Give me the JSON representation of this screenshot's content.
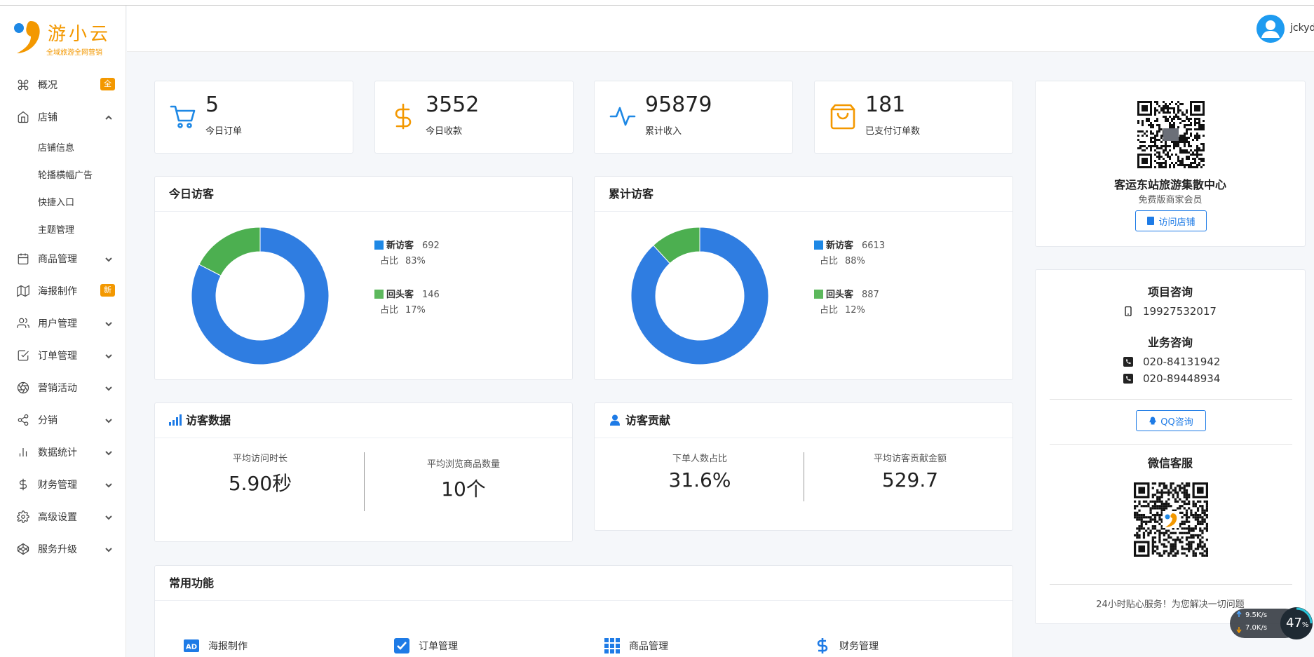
{
  "brand": {
    "name": "游小云",
    "tagline": "全域旅游全网营销"
  },
  "user": {
    "name": "jckyd"
  },
  "sidebar": {
    "items": [
      {
        "label": "概况",
        "icon": "command-icon",
        "badge": "全"
      },
      {
        "label": "店铺",
        "icon": "home-icon",
        "expanded": true,
        "children": [
          "店铺信息",
          "轮播横幅广告",
          "快捷入口",
          "主题管理"
        ]
      },
      {
        "label": "商品管理",
        "icon": "calendar-icon"
      },
      {
        "label": "海报制作",
        "icon": "map-icon",
        "badge": "新"
      },
      {
        "label": "用户管理",
        "icon": "users-icon"
      },
      {
        "label": "订单管理",
        "icon": "check-square-icon"
      },
      {
        "label": "营销活动",
        "icon": "aperture-icon"
      },
      {
        "label": "分销",
        "icon": "share-icon"
      },
      {
        "label": "数据统计",
        "icon": "bar-chart-icon"
      },
      {
        "label": "财务管理",
        "icon": "dollar-icon"
      },
      {
        "label": "高级设置",
        "icon": "settings-icon"
      },
      {
        "label": "服务升级",
        "icon": "codepen-icon"
      }
    ]
  },
  "stats": [
    {
      "value": "5",
      "label": "今日订单",
      "icon": "cart-icon",
      "color": "#1e88e5"
    },
    {
      "value": "3552",
      "label": "今日收款",
      "icon": "dollar-icon",
      "color": "#f39800"
    },
    {
      "value": "95879",
      "label": "累计收入",
      "icon": "activity-icon",
      "color": "#1e88e5"
    },
    {
      "value": "181",
      "label": "已支付订单数",
      "icon": "shopping-bag-icon",
      "color": "#f39800"
    }
  ],
  "today_visitors": {
    "title": "今日访客",
    "legend": [
      {
        "name": "新访客",
        "value": "692",
        "ratio_label": "占比",
        "ratio": "83%",
        "color": "#1e88e5"
      },
      {
        "name": "回头客",
        "value": "146",
        "ratio_label": "占比",
        "ratio": "17%",
        "color": "#5cb85c"
      }
    ]
  },
  "total_visitors": {
    "title": "累计访客",
    "legend": [
      {
        "name": "新访客",
        "value": "6613",
        "ratio_label": "占比",
        "ratio": "88%",
        "color": "#1e88e5"
      },
      {
        "name": "回头客",
        "value": "887",
        "ratio_label": "占比",
        "ratio": "12%",
        "color": "#5cb85c"
      }
    ]
  },
  "chart_data": [
    {
      "type": "pie",
      "title": "今日访客",
      "categories": [
        "新访客",
        "回头客"
      ],
      "values": [
        692,
        146
      ],
      "colors": [
        "#2f7de1",
        "#4caf50"
      ]
    },
    {
      "type": "pie",
      "title": "累计访客",
      "categories": [
        "新访客",
        "回头客"
      ],
      "values": [
        6613,
        887
      ],
      "colors": [
        "#2f7de1",
        "#4caf50"
      ]
    }
  ],
  "visitor_data": {
    "title": "访客数据",
    "metrics": [
      {
        "label": "平均访问时长",
        "value": "5.90秒"
      },
      {
        "label": "平均浏览商品数量",
        "value": "10个"
      }
    ]
  },
  "visitor_contribution": {
    "title": "访客贡献",
    "metrics": [
      {
        "label": "下单人数占比",
        "value": "31.6%"
      },
      {
        "label": "平均访客贡献金额",
        "value": "529.7"
      }
    ]
  },
  "functions": {
    "title": "常用功能",
    "items": [
      {
        "label": "海报制作",
        "icon": "ad-icon"
      },
      {
        "label": "订单管理",
        "icon": "checkbox-icon"
      },
      {
        "label": "商品管理",
        "icon": "grid-icon"
      },
      {
        "label": "财务管理",
        "icon": "dollar-icon"
      }
    ]
  },
  "store": {
    "name": "客运东站旅游集散中心",
    "level": "免费版商家会员",
    "visit_button": "访问店铺"
  },
  "contact": {
    "project_title": "项目咨询",
    "project_phone": "19927532017",
    "business_title": "业务咨询",
    "business_phones": [
      "020-84131942",
      "020-89448934"
    ],
    "qq_button": "QQ咨询",
    "wechat_title": "微信客服",
    "service_text": "24小时贴心服务！为您解决一切问题"
  },
  "speed_widget": {
    "up": "9.5K/s",
    "down": "7.0K/s",
    "percent": "47",
    "percent_unit": "%"
  },
  "colors": {
    "primary": "#1e7be6",
    "accent": "#f39800",
    "green": "#4caf50"
  }
}
